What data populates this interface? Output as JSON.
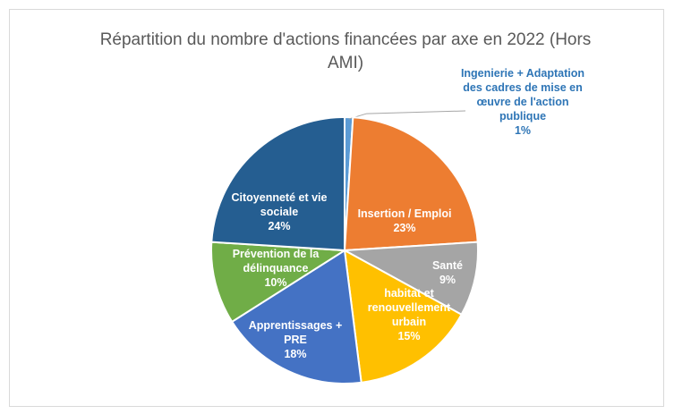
{
  "chart_data": {
    "type": "pie",
    "title": "Répartition du nombre d'actions financées par axe en 2022 (Hors AMI)",
    "categories": [
      "Ingenierie + Adaptation des cadres de mise en œuvre de l'action publique",
      "Insertion / Emploi",
      "Santé",
      "habitat et renouvellement urbain",
      "Apprentissages + PRE",
      "Prévention de la délinquance",
      "Citoyenneté et vie sociale"
    ],
    "values": [
      1,
      23,
      9,
      15,
      18,
      10,
      24
    ],
    "value_labels": [
      "1%",
      "23%",
      "9%",
      "15%",
      "18%",
      "10%",
      "24%"
    ],
    "colors": [
      "#5b9bd5",
      "#ed7d31",
      "#a5a5a5",
      "#ffc000",
      "#4472c4",
      "#70ad47",
      "#255e91"
    ]
  }
}
